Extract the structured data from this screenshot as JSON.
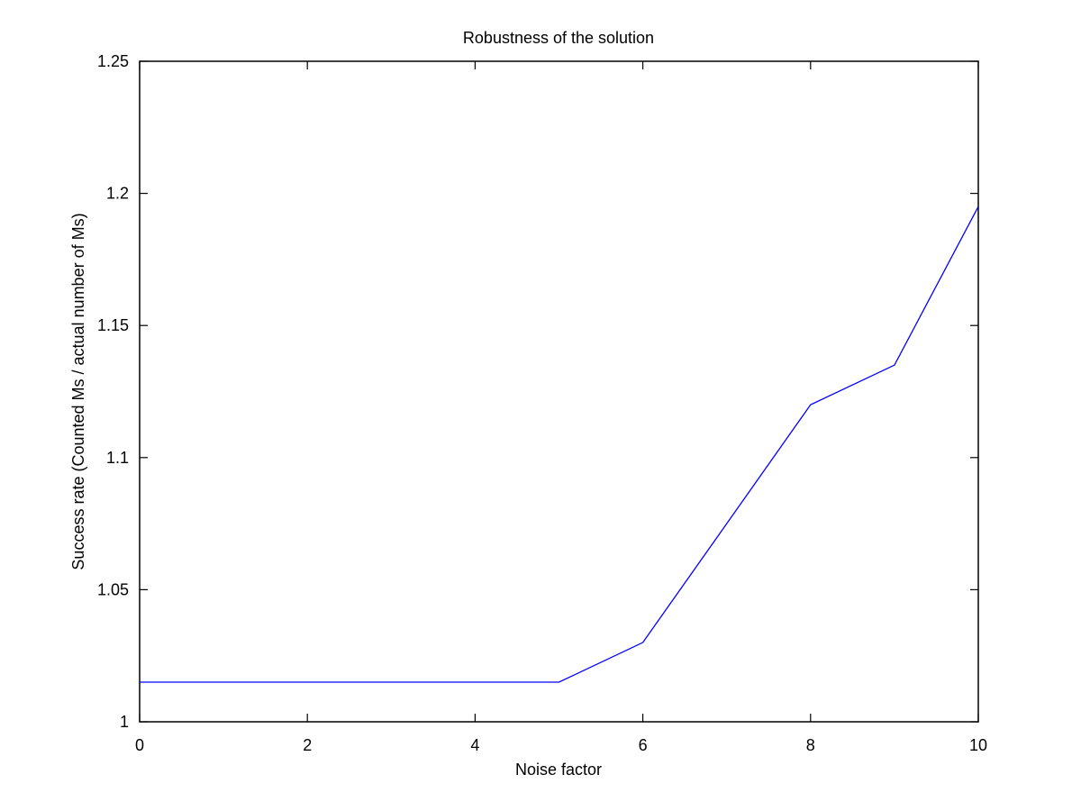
{
  "chart_data": {
    "type": "line",
    "title": "Robustness of the solution",
    "xlabel": "Noise factor",
    "ylabel": "Success rate (Counted Ms / actual number of Ms)",
    "xlim": [
      0,
      10
    ],
    "ylim": [
      1,
      1.25
    ],
    "xticks": [
      0,
      2,
      4,
      6,
      8,
      10
    ],
    "xtick_labels": [
      "0",
      "2",
      "4",
      "6",
      "8",
      "10"
    ],
    "yticks": [
      1,
      1.05,
      1.1,
      1.15,
      1.2,
      1.25
    ],
    "ytick_labels": [
      "1",
      "1.05",
      "1.1",
      "1.15",
      "1.2",
      "1.25"
    ],
    "grid": false,
    "series": [
      {
        "color": "#0000ff",
        "x": [
          0,
          1,
          2,
          3,
          4,
          5,
          6,
          7,
          8,
          9,
          10
        ],
        "y": [
          1.015,
          1.015,
          1.015,
          1.015,
          1.015,
          1.015,
          1.03,
          1.075,
          1.12,
          1.135,
          1.195
        ]
      }
    ]
  }
}
